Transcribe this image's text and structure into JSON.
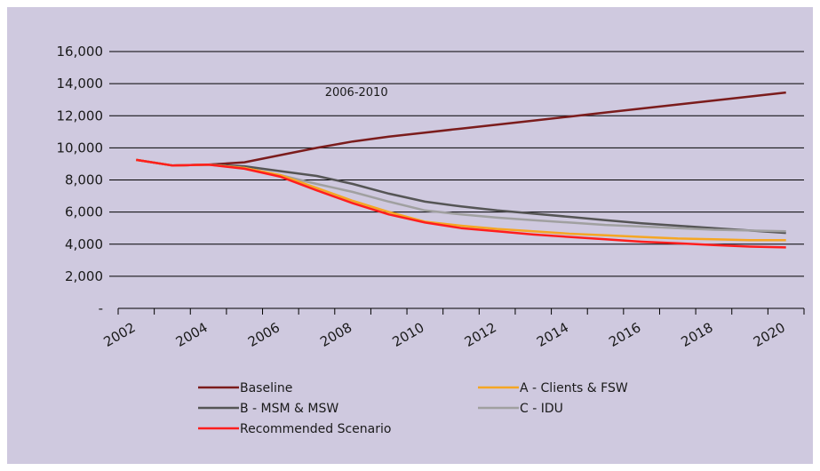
{
  "chart_data": {
    "type": "line",
    "x": [
      2002.5,
      2003.5,
      2004.5,
      2005.5,
      2006.5,
      2007.5,
      2008.5,
      2009.5,
      2010.5,
      2011.5,
      2012.5,
      2013.5,
      2014.5,
      2015.5,
      2016.5,
      2017.5,
      2018.5,
      2019.5,
      2020.5
    ],
    "xlim": [
      2002,
      2021
    ],
    "ylim": [
      0,
      16000
    ],
    "x_ticks": [
      2002,
      2004,
      2006,
      2008,
      2010,
      2012,
      2014,
      2016,
      2018,
      2020
    ],
    "x_tick_labels": [
      "2002",
      "2004",
      "2006",
      "2008",
      "2010",
      "2012",
      "2014",
      "2016",
      "2018",
      "2020"
    ],
    "y_ticks": [
      0,
      2000,
      4000,
      6000,
      8000,
      10000,
      12000,
      14000,
      16000
    ],
    "y_tick_labels": [
      "-",
      "2,000",
      "4,000",
      "6,000",
      "8,000",
      "10,000",
      "12,000",
      "14,000",
      "16,000"
    ],
    "grid": "horizontal",
    "legend_placement": "bottom",
    "annotation": {
      "text": "2006-2010",
      "x": 2008.6,
      "y": 13500
    },
    "series": [
      {
        "name": "Baseline",
        "color": "#7b1c1c",
        "values": [
          9250,
          8900,
          8950,
          9100,
          9550,
          10000,
          10400,
          10700,
          10950,
          11200,
          11450,
          11700,
          11950,
          12200,
          12450,
          12700,
          12950,
          13200,
          13450
        ]
      },
      {
        "name": "A - Clients & FSW",
        "color": "#f5a623",
        "values": [
          9250,
          8900,
          8950,
          8750,
          8300,
          7500,
          6700,
          6000,
          5400,
          5150,
          4950,
          4800,
          4650,
          4550,
          4450,
          4350,
          4300,
          4250,
          4250
        ]
      },
      {
        "name": "B - MSM & MSW",
        "color": "#555555",
        "values": [
          9250,
          8900,
          8950,
          8850,
          8550,
          8250,
          7750,
          7150,
          6650,
          6350,
          6100,
          5900,
          5700,
          5500,
          5300,
          5150,
          5000,
          4850,
          4700
        ]
      },
      {
        "name": "C - IDU",
        "color": "#a0a0a0",
        "values": [
          9250,
          8900,
          8950,
          8750,
          8300,
          7750,
          7250,
          6650,
          6100,
          5850,
          5650,
          5500,
          5350,
          5200,
          5100,
          5000,
          4900,
          4850,
          4800
        ]
      },
      {
        "name": "Recommended Scenario",
        "color": "#ff1e1e",
        "values": [
          9250,
          8900,
          8950,
          8700,
          8200,
          7350,
          6550,
          5850,
          5350,
          5000,
          4800,
          4600,
          4450,
          4300,
          4150,
          4050,
          3950,
          3850,
          3800
        ]
      }
    ]
  }
}
